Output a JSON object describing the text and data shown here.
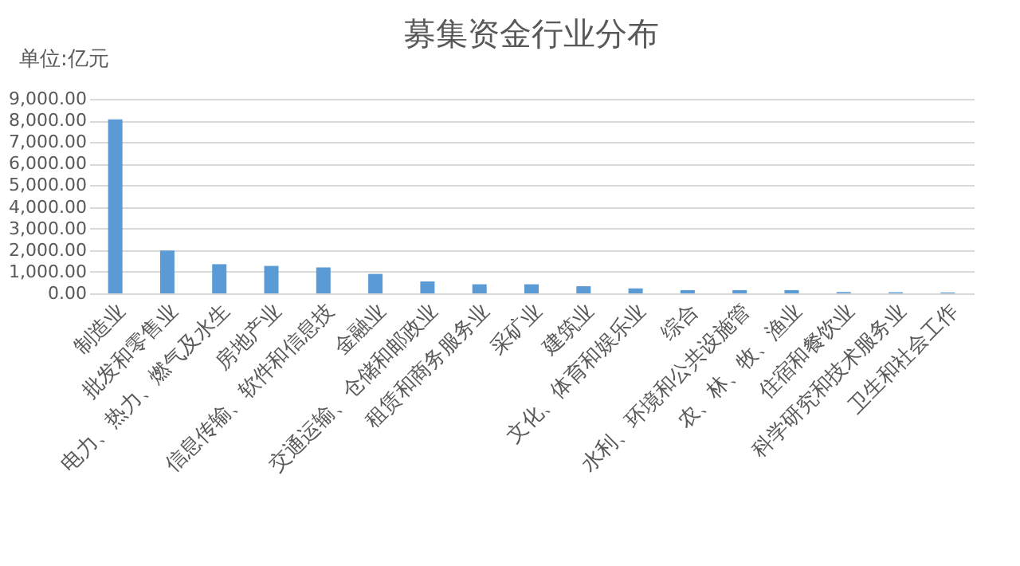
{
  "chart_data": {
    "type": "bar",
    "title": "募集资金行业分布",
    "annotations": [
      "单位:亿元"
    ],
    "categories": [
      "制造业",
      "批发和零售业",
      "电力、热力、燃气及水生",
      "房地产业",
      "信息传输、软件和信息技",
      "金融业",
      "交通运输、仓储和邮政业",
      "租赁和商务服务业",
      "采矿业",
      "建筑业",
      "文化、体育和娱乐业",
      "综合",
      "水利、环境和公共设施管",
      "农、林、牧、渔业",
      "住宿和餐饮业",
      "科学研究和技术服务业",
      "卫生和社会工作"
    ],
    "values": [
      8050,
      1980,
      1350,
      1270,
      1200,
      900,
      550,
      420,
      420,
      330,
      230,
      150,
      150,
      150,
      60,
      50,
      40
    ],
    "color": "#5b9bd5",
    "ylim": [
      0,
      9000
    ],
    "yticks": [
      {
        "value": 0,
        "label": "0.00"
      },
      {
        "value": 1000,
        "label": "1,000.00"
      },
      {
        "value": 2000,
        "label": "2,000.00"
      },
      {
        "value": 3000,
        "label": "3,000.00"
      },
      {
        "value": 4000,
        "label": "4,000.00"
      },
      {
        "value": 5000,
        "label": "5,000.00"
      },
      {
        "value": 6000,
        "label": "6,000.00"
      },
      {
        "value": 7000,
        "label": "7,000.00"
      },
      {
        "value": 8000,
        "label": "8,000.00"
      },
      {
        "value": 9000,
        "label": "9,000.00"
      }
    ],
    "grid": "y"
  }
}
